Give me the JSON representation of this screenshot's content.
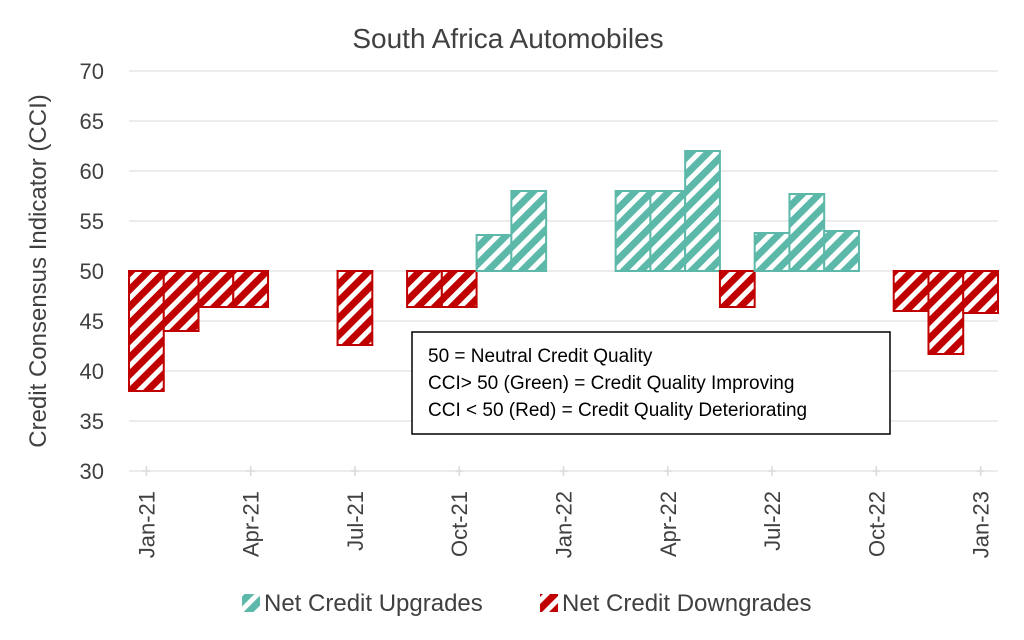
{
  "chart_data": {
    "type": "bar",
    "title": "South Africa Automobiles",
    "ylabel": "Credit Consensus Indicator (CCI)",
    "xlabel": "",
    "ylim": [
      30,
      70
    ],
    "yticks": [
      "30",
      "35",
      "40",
      "45",
      "50",
      "55",
      "60",
      "65",
      "70"
    ],
    "baseline": 50,
    "grid": true,
    "legend_position": "bottom",
    "xtick_labels": [
      {
        "label": "Jan-21",
        "month_index": 0
      },
      {
        "label": "Apr-21",
        "month_index": 3
      },
      {
        "label": "Jul-21",
        "month_index": 6
      },
      {
        "label": "Oct-21",
        "month_index": 9
      },
      {
        "label": "Jan-22",
        "month_index": 12
      },
      {
        "label": "Apr-22",
        "month_index": 15
      },
      {
        "label": "Jul-22",
        "month_index": 18
      },
      {
        "label": "Oct-22",
        "month_index": 21
      },
      {
        "label": "Jan-23",
        "month_index": 24
      }
    ],
    "series": [
      {
        "name": "Net Credit Upgrades",
        "color": "#5cb9a9",
        "pattern": "hatch"
      },
      {
        "name": "Net Credit Downgrades",
        "color": "#c00000",
        "pattern": "hatch"
      }
    ],
    "categories": [
      "Jan-21",
      "Feb-21",
      "Mar-21",
      "Apr-21",
      "May-21",
      "Jun-21",
      "Jul-21",
      "Aug-21",
      "Sep-21",
      "Oct-21",
      "Nov-21",
      "Dec-21",
      "Jan-22",
      "Feb-22",
      "Mar-22",
      "Apr-22",
      "May-22",
      "Jun-22",
      "Jul-22",
      "Aug-22",
      "Sep-22",
      "Oct-22",
      "Nov-22",
      "Dec-22",
      "Jan-23"
    ],
    "values": [
      38.0,
      44.0,
      46.4,
      46.4,
      null,
      null,
      42.6,
      null,
      46.4,
      46.4,
      53.6,
      58.0,
      null,
      null,
      58.0,
      58.0,
      62.0,
      46.4,
      53.8,
      57.7,
      54.0,
      null,
      46.0,
      41.7,
      45.8
    ],
    "annotation": [
      "50 = Neutral Credit Quality",
      "CCI> 50 (Green) = Credit Quality Improving",
      "CCI < 50 (Red) = Credit Quality Deteriorating"
    ]
  }
}
